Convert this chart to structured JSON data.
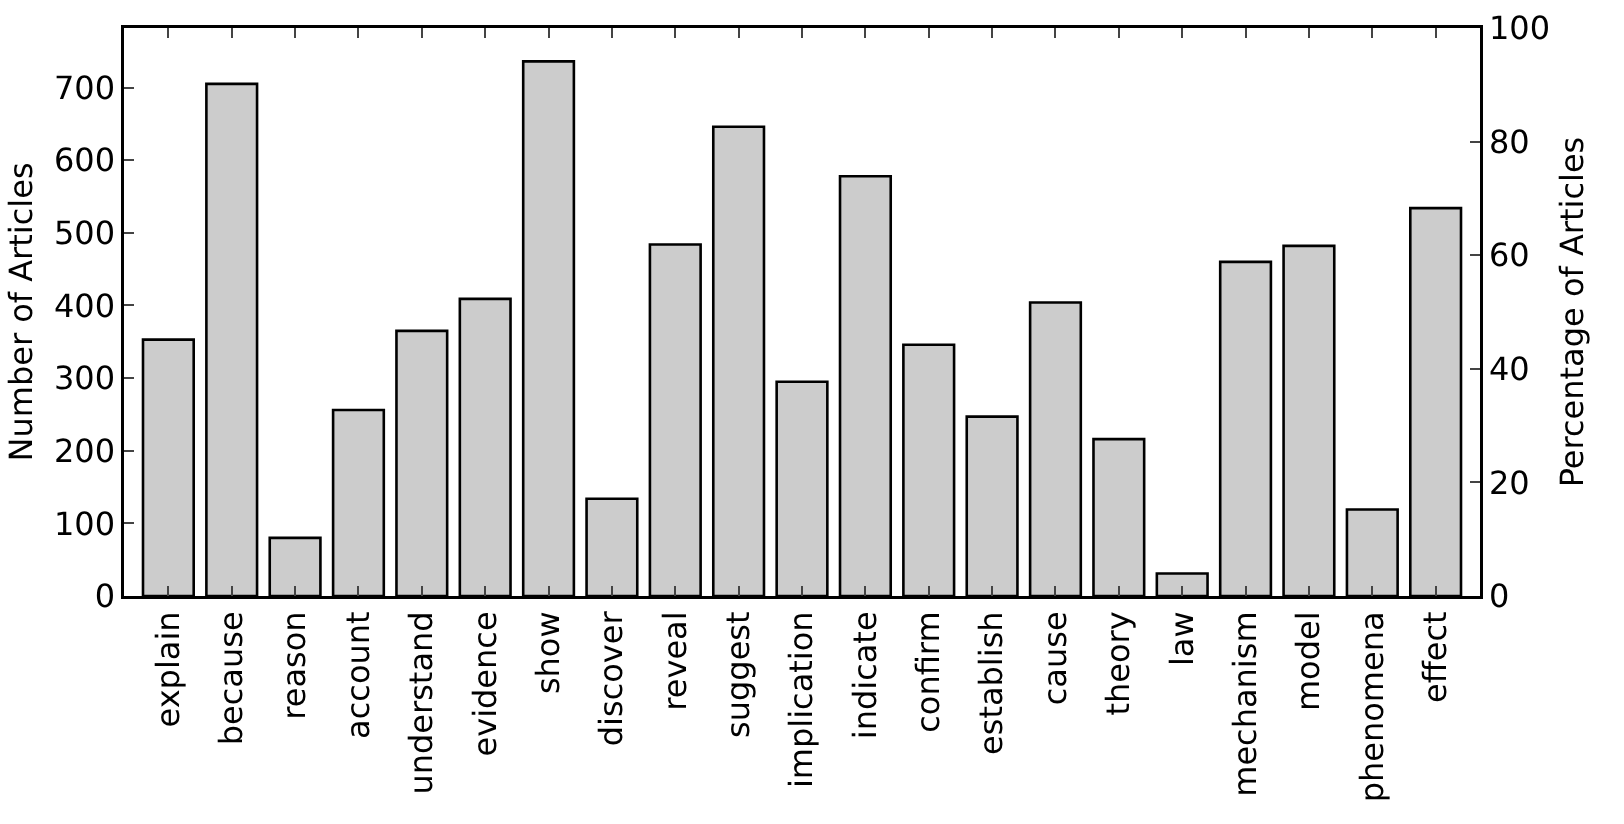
{
  "chart_data": {
    "type": "bar",
    "ylabel": "Number of Articles",
    "y2label": "Percentage of Articles",
    "categories": [
      "explain",
      "because",
      "reason",
      "account",
      "understand",
      "evidence",
      "show",
      "discover",
      "reveal",
      "suggest",
      "implication",
      "indicate",
      "confirm",
      "establish",
      "cause",
      "theory",
      "law",
      "mechanism",
      "model",
      "phenomena",
      "effect"
    ],
    "values": [
      353,
      705,
      80,
      256,
      365,
      409,
      736,
      134,
      484,
      646,
      295,
      578,
      346,
      247,
      404,
      216,
      31,
      460,
      482,
      119,
      534
    ],
    "color": "#cccccc",
    "ylim": [
      0,
      782
    ],
    "yticks": [
      0,
      100,
      200,
      300,
      400,
      500,
      600,
      700
    ],
    "y2lim": [
      0,
      100
    ],
    "y2ticks": [
      0,
      20,
      40,
      60,
      80,
      100
    ],
    "grid": false
  }
}
